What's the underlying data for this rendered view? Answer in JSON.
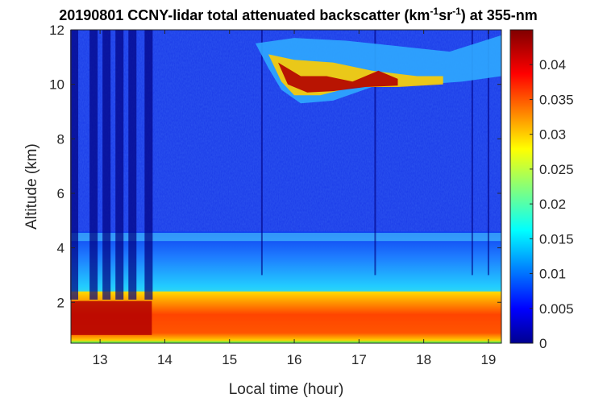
{
  "chart_data": {
    "type": "heatmap",
    "title": {
      "prefix": "20190801 CCNY-lidar total attenuated backscatter (km",
      "sup1": "-1",
      "mid": "sr",
      "sup2": "-1",
      "suffix": ") at 355-nm"
    },
    "xlabel": "Local time (hour)",
    "ylabel": "Altitude (km)",
    "xlim": [
      12.55,
      19.2
    ],
    "ylim": [
      0.5,
      12
    ],
    "xticks": [
      13,
      14,
      15,
      16,
      17,
      18,
      19
    ],
    "yticks": [
      2,
      4,
      6,
      8,
      10,
      12
    ],
    "colorbar": {
      "min": 0,
      "max": 0.045,
      "ticks": [
        0,
        0.005,
        0.01,
        0.015,
        0.02,
        0.025,
        0.03,
        0.035,
        0.04
      ],
      "tick_labels": [
        "0",
        "0.005",
        "0.01",
        "0.015",
        "0.02",
        "0.025",
        "0.03",
        "0.035",
        "0.04"
      ],
      "colormap": "jet"
    },
    "features": {
      "boundary_layer": {
        "time_range": [
          12.55,
          19.2
        ],
        "altitude_range": [
          0.5,
          2.4
        ],
        "value": 0.036
      },
      "residual_layer_top_km": 4.4,
      "cirrus_cloud": {
        "time_range": [
          15.4,
          19.2
        ],
        "altitude_range": [
          9.5,
          11.5
        ],
        "peak_value": 0.045
      },
      "dark_columns_hours": [
        12.6,
        12.9,
        13.1,
        13.3,
        13.5,
        13.75,
        15.5,
        17.25,
        18.75,
        19.0
      ]
    }
  }
}
